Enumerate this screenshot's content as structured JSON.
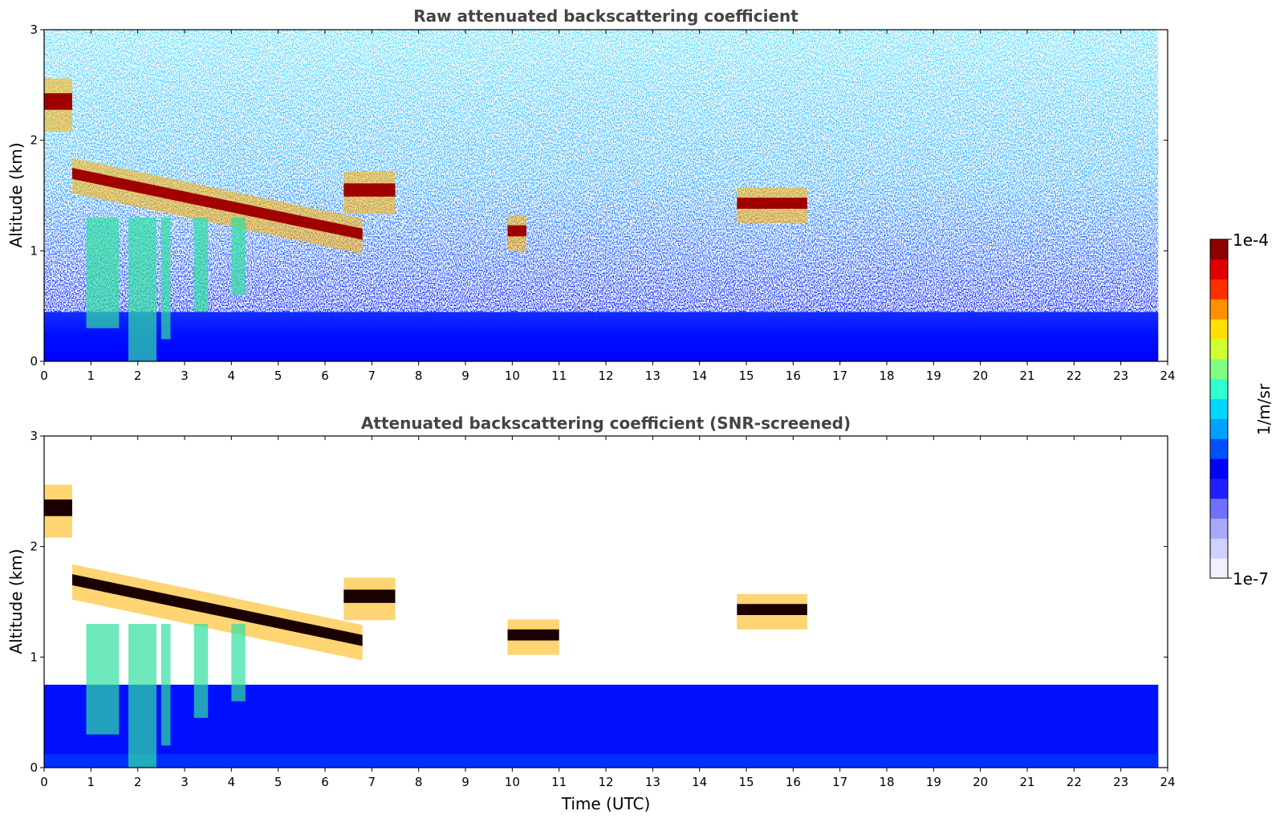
{
  "colors": {
    "colormap": [
      "#f0f0ff",
      "#d0d0ff",
      "#a8a8ff",
      "#7070ff",
      "#2020ff",
      "#0000ff",
      "#0050ff",
      "#00a0ff",
      "#00d8ff",
      "#30ffd0",
      "#80ff80",
      "#d0ff30",
      "#ffe000",
      "#ff9000",
      "#ff3000",
      "#e00000",
      "#8b0000"
    ],
    "background": "#ffffff",
    "title": "#444444"
  },
  "chart_data": [
    {
      "type": "heatmap",
      "title": "Raw attenuated backscattering coefficient",
      "xlabel": "",
      "ylabel": "Altitude (km)",
      "xlim": [
        0,
        24
      ],
      "ylim": [
        0,
        3
      ],
      "xticks": [
        "0",
        "1",
        "2",
        "3",
        "4",
        "5",
        "6",
        "7",
        "8",
        "9",
        "10",
        "11",
        "12",
        "13",
        "14",
        "15",
        "16",
        "17",
        "18",
        "19",
        "20",
        "21",
        "22",
        "23",
        "24"
      ],
      "yticks": [
        "0",
        "1",
        "2",
        "3"
      ],
      "data_end_time": 23.8,
      "layers": [
        {
          "feature": "cloud",
          "t0": 0.0,
          "t1": 0.6,
          "alt": 2.35,
          "thick": 0.15
        },
        {
          "feature": "cloud",
          "t0": 0.6,
          "t1": 6.8,
          "alt_start": 1.7,
          "alt_end": 1.15,
          "thick": 0.1
        },
        {
          "feature": "cloud",
          "t0": 6.4,
          "t1": 7.5,
          "alt": 1.55,
          "thick": 0.12
        },
        {
          "feature": "cloud",
          "t0": 9.9,
          "t1": 10.3,
          "alt": 1.18,
          "thick": 0.1
        },
        {
          "feature": "cloud",
          "t0": 14.8,
          "t1": 16.3,
          "alt": 1.43,
          "thick": 0.1
        }
      ],
      "boundary_layer_top_km": 0.7,
      "colorbar": {
        "label": "1/m/sr",
        "min_label": "1e-7",
        "max_label": "1e-4",
        "scale": "log"
      }
    },
    {
      "type": "heatmap",
      "title": "Attenuated backscattering coefficient (SNR-screened)",
      "xlabel": "Time (UTC)",
      "ylabel": "Altitude (km)",
      "xlim": [
        0,
        24
      ],
      "ylim": [
        0,
        3
      ],
      "xticks": [
        "0",
        "1",
        "2",
        "3",
        "4",
        "5",
        "6",
        "7",
        "8",
        "9",
        "10",
        "11",
        "12",
        "13",
        "14",
        "15",
        "16",
        "17",
        "18",
        "19",
        "20",
        "21",
        "22",
        "23",
        "24"
      ],
      "yticks": [
        "0",
        "1",
        "2",
        "3"
      ],
      "data_end_time": 23.8,
      "layers": [
        {
          "feature": "cloud",
          "t0": 0.0,
          "t1": 0.6,
          "alt": 2.35,
          "thick": 0.15
        },
        {
          "feature": "cloud",
          "t0": 0.6,
          "t1": 6.8,
          "alt_start": 1.7,
          "alt_end": 1.15,
          "thick": 0.1
        },
        {
          "feature": "cloud",
          "t0": 6.4,
          "t1": 7.5,
          "alt": 1.55,
          "thick": 0.12
        },
        {
          "feature": "cloud",
          "t0": 9.9,
          "t1": 11.0,
          "alt": 1.2,
          "thick": 0.1
        },
        {
          "feature": "cloud",
          "t0": 14.8,
          "t1": 16.3,
          "alt": 1.43,
          "thick": 0.1
        }
      ],
      "boundary_layer_top_km": 0.75
    }
  ]
}
